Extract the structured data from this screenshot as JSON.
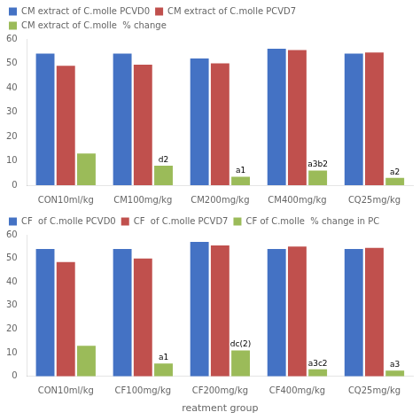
{
  "chart_data": [
    {
      "type": "bar",
      "categories": [
        "CON10ml/kg",
        "CM100mg/kg",
        "CM200mg/kg",
        "CM400mg/kg",
        "CQ25mg/kg"
      ],
      "series": [
        {
          "name": "CM extract of C.molle PCVD0",
          "color": "#4472C4",
          "values": [
            54,
            54,
            52,
            56,
            54
          ]
        },
        {
          "name": "CM extract of C.molle PCVD7",
          "color": "#C0504D",
          "values": [
            49,
            49.5,
            50,
            55.5,
            54.5
          ]
        },
        {
          "name": "CM extract of C.molle  % change",
          "color": "#9BBB59",
          "values": [
            13,
            8,
            3.5,
            6,
            3
          ],
          "annotations": [
            null,
            "d2",
            "a1",
            "a3b2",
            "a2"
          ]
        }
      ],
      "ylim": [
        0,
        60
      ],
      "yticks": [
        0,
        10,
        20,
        30,
        40,
        50,
        60
      ],
      "grid": false,
      "legend": "top"
    },
    {
      "type": "bar",
      "xlabel": "reatment group",
      "categories": [
        "CON10ml/kg",
        "CF100mg/kg",
        "CF200mg/kg",
        "CF400mg/kg",
        "CQ25mg/kg"
      ],
      "series": [
        {
          "name": "CF  of C.molle PCVD0",
          "color": "#4472C4",
          "values": [
            54,
            54,
            57,
            54,
            54
          ]
        },
        {
          "name": "CF  of C.molle PCVD7",
          "color": "#C0504D",
          "values": [
            48.5,
            50,
            55.5,
            55,
            54.5
          ]
        },
        {
          "name": "CF of C.molle  % change in PC",
          "color": "#9BBB59",
          "values": [
            13,
            5.5,
            11,
            3,
            2.5
          ],
          "annotations": [
            null,
            "a1",
            "dc(2)",
            "a3c2",
            "a3"
          ]
        }
      ],
      "ylim": [
        0,
        60
      ],
      "yticks": [
        0,
        10,
        20,
        30,
        40,
        50,
        60
      ],
      "grid": false,
      "legend": "top"
    }
  ]
}
